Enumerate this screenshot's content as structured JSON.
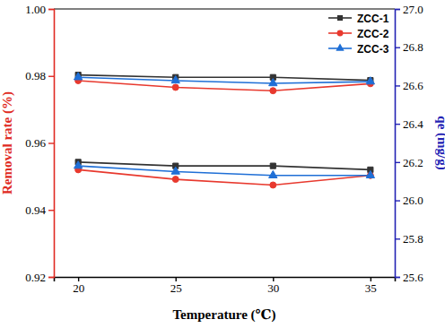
{
  "chart_data": {
    "type": "line",
    "x_label": "Temperature (℃)",
    "y_label": "Removal rate (%)",
    "y2_label": "qe (mg/g)",
    "x": [
      20,
      25,
      30,
      35
    ],
    "xlim": [
      18.75,
      36.25
    ],
    "xticks": [
      20,
      25,
      30,
      35
    ],
    "ylim": [
      0.92,
      1
    ],
    "yticks": [
      0.92,
      0.94,
      0.96,
      0.98,
      {
        "value": 1,
        "label": "1.00"
      }
    ],
    "y2lim": [
      25.6,
      27
    ],
    "y2ticks": [
      25.6,
      25.8,
      {
        "value": 26,
        "label": "26.0"
      },
      26.2,
      26.4,
      26.6,
      26.8,
      {
        "value": 27,
        "label": "27.0"
      }
    ],
    "legend": "upper right",
    "series": [
      {
        "name": "ZCC-1",
        "color": "#333333",
        "marker": "square",
        "axis": "y",
        "values": [
          0.9803,
          0.9796,
          0.9796,
          0.9787
        ]
      },
      {
        "name": "ZCC-2",
        "color": "#e8392e",
        "marker": "circle",
        "axis": "y",
        "values": [
          0.9786,
          0.9766,
          0.9756,
          0.9777
        ]
      },
      {
        "name": "ZCC-3",
        "color": "#1f6fd6",
        "marker": "triangle",
        "axis": "y",
        "values": [
          0.9796,
          0.9786,
          0.9778,
          0.9783
        ]
      },
      {
        "name": "ZCC-1",
        "color": "#333333",
        "marker": "square",
        "axis": "y2",
        "values": [
          26.2,
          26.18,
          26.18,
          26.16
        ]
      },
      {
        "name": "ZCC-2",
        "color": "#e8392e",
        "marker": "circle",
        "axis": "y2",
        "values": [
          26.16,
          26.11,
          26.08,
          26.13
        ]
      },
      {
        "name": "ZCC-3",
        "color": "#1f6fd6",
        "marker": "triangle",
        "axis": "y2",
        "values": [
          26.18,
          26.15,
          26.13,
          26.13
        ]
      }
    ]
  }
}
